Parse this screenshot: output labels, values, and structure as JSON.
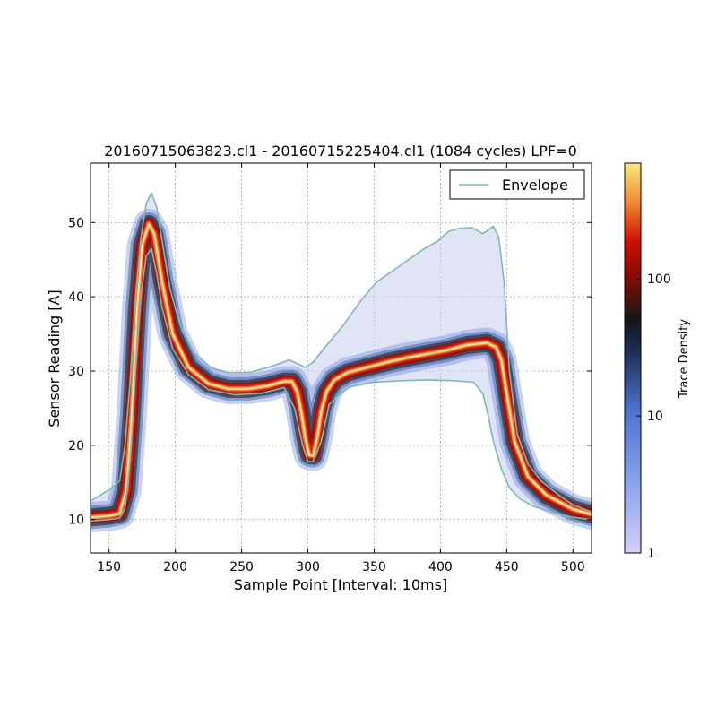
{
  "chart_data": {
    "type": "line",
    "title": "20160715063823.cl1 - 20160715225404.cl1 (1084 cycles) LPF=0",
    "xlabel": "Sample Point [Interval: 10ms]",
    "ylabel": "Sensor Reading [A]",
    "xlim": [
      136,
      514
    ],
    "ylim": [
      5.5,
      58
    ],
    "x_ticks": [
      150,
      200,
      250,
      300,
      350,
      400,
      450,
      500
    ],
    "y_ticks": [
      10,
      20,
      30,
      40,
      50
    ],
    "grid": true,
    "legend": {
      "position": "top-right",
      "entries": [
        "Envelope"
      ]
    },
    "colorbar": {
      "label": "Trace Density",
      "scale": "log",
      "range": [
        1,
        700
      ],
      "ticks": [
        1,
        10,
        100
      ]
    },
    "series": [
      {
        "name": "Envelope",
        "role": "upper",
        "color": "#7fb7b4",
        "x": [
          136,
          150,
          158,
          162,
          166,
          170,
          174,
          178,
          182,
          186,
          190,
          196,
          204,
          214,
          226,
          240,
          256,
          272,
          286,
          292,
          298,
          304,
          312,
          326,
          340,
          352,
          364,
          376,
          388,
          398,
          406,
          414,
          424,
          432,
          440,
          444,
          448,
          452,
          458,
          466,
          476,
          490,
          500,
          514
        ],
        "y": [
          12.5,
          14,
          15.2,
          20,
          29,
          40,
          48,
          52.5,
          54,
          52,
          47.5,
          41,
          36,
          32.5,
          30.5,
          29.8,
          29.8,
          30.6,
          31.5,
          31,
          30.5,
          31.2,
          33,
          36,
          39.5,
          42,
          43.5,
          45,
          46.5,
          47.5,
          48.8,
          49.2,
          49.3,
          48.5,
          49.5,
          48,
          42,
          30,
          21.5,
          17.5,
          15.2,
          13.2,
          12,
          11
        ]
      },
      {
        "name": "Density core",
        "role": "center",
        "color": "#d63a1e",
        "x": [
          136,
          150,
          158,
          163,
          167,
          171,
          175,
          180,
          184,
          190,
          198,
          210,
          225,
          240,
          255,
          270,
          282,
          288,
          292,
          295,
          298,
          301,
          304,
          307,
          310,
          314,
          320,
          330,
          345,
          360,
          375,
          390,
          405,
          420,
          435,
          442,
          446,
          450,
          456,
          466,
          480,
          500,
          514
        ],
        "y": [
          10.3,
          10.5,
          10.8,
          14,
          24,
          38,
          47,
          49.8,
          48.5,
          42,
          35,
          30.5,
          28.3,
          27.6,
          27.6,
          28,
          28.6,
          28.6,
          27.2,
          24.5,
          21,
          18.7,
          18.6,
          21,
          24.5,
          27.2,
          28.8,
          29.8,
          30.5,
          31.2,
          31.8,
          32.3,
          32.8,
          33.5,
          33.8,
          33.2,
          31.5,
          27,
          20.5,
          15.8,
          13.3,
          11.4,
          10.7
        ]
      },
      {
        "name": "Envelope",
        "role": "lower",
        "color": "#7fb7b4",
        "x": [
          136,
          150,
          158,
          162,
          166,
          170,
          174,
          178,
          182,
          186,
          190,
          198,
          210,
          225,
          245,
          265,
          282,
          290,
          296,
          300,
          304,
          310,
          316,
          330,
          350,
          370,
          390,
          410,
          425,
          432,
          436,
          440,
          446,
          452,
          460,
          470,
          485,
          500,
          514
        ],
        "y": [
          9.8,
          10,
          10.2,
          11.5,
          18,
          30,
          40,
          45.5,
          46.5,
          43,
          38.5,
          33,
          29.5,
          27.5,
          26.8,
          27,
          27.8,
          25,
          20,
          17.8,
          17.8,
          20.5,
          25.5,
          27.8,
          28.5,
          28.7,
          28.8,
          28.7,
          28.5,
          27,
          24,
          20.5,
          16.8,
          14.3,
          12.8,
          11.8,
          10.9,
          10.3,
          10
        ]
      }
    ]
  }
}
